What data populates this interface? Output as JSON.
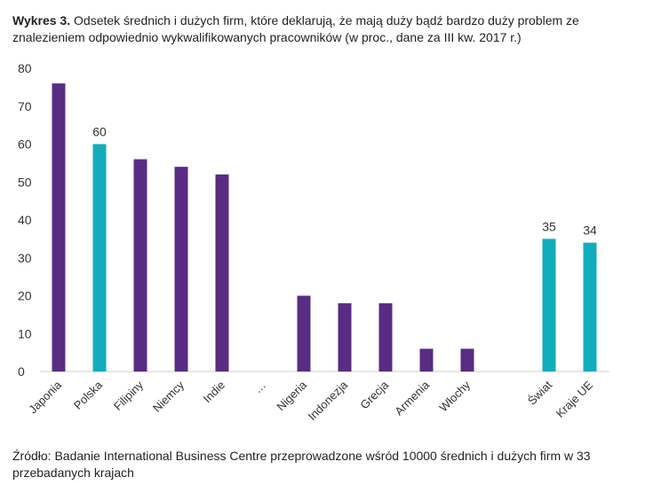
{
  "title": {
    "label": "Wykres 3.",
    "text": "Odsetek średnich i dużych firm, które deklarują, że mają duży bądź bardzo duży problem ze znalezieniem odpowiednio wykwalifikowanych pracowników (w proc., dane za III kw. 2017 r.)"
  },
  "source": "Źródło: Badanie International Business Centre przeprowadzone wśród 10000 średnich i dużych firm w 33 przebadanych krajach",
  "chart_data": {
    "type": "bar",
    "categories": [
      "Japonia",
      "Polska",
      "Filipiny",
      "Niemcy",
      "Indie",
      "…",
      "Nigeria",
      "Indonezja",
      "Grecja",
      "Armenia",
      "Włochy",
      "",
      "Świat",
      "Kraje UE"
    ],
    "values": [
      76,
      60,
      56,
      54,
      52,
      null,
      20,
      18,
      18,
      6,
      6,
      null,
      35,
      34
    ],
    "highlight": [
      false,
      true,
      false,
      false,
      false,
      false,
      false,
      false,
      false,
      false,
      false,
      false,
      true,
      true
    ],
    "data_labels": {
      "Polska": "60",
      "Świat": "35",
      "Kraje UE": "34"
    },
    "yticks": [
      0,
      10,
      20,
      30,
      40,
      50,
      60,
      70,
      80
    ],
    "ylim": [
      0,
      80
    ],
    "grid": false,
    "colors": {
      "default": "#582c83",
      "highlight": "#12adbd",
      "axis": "#cccccc"
    }
  }
}
